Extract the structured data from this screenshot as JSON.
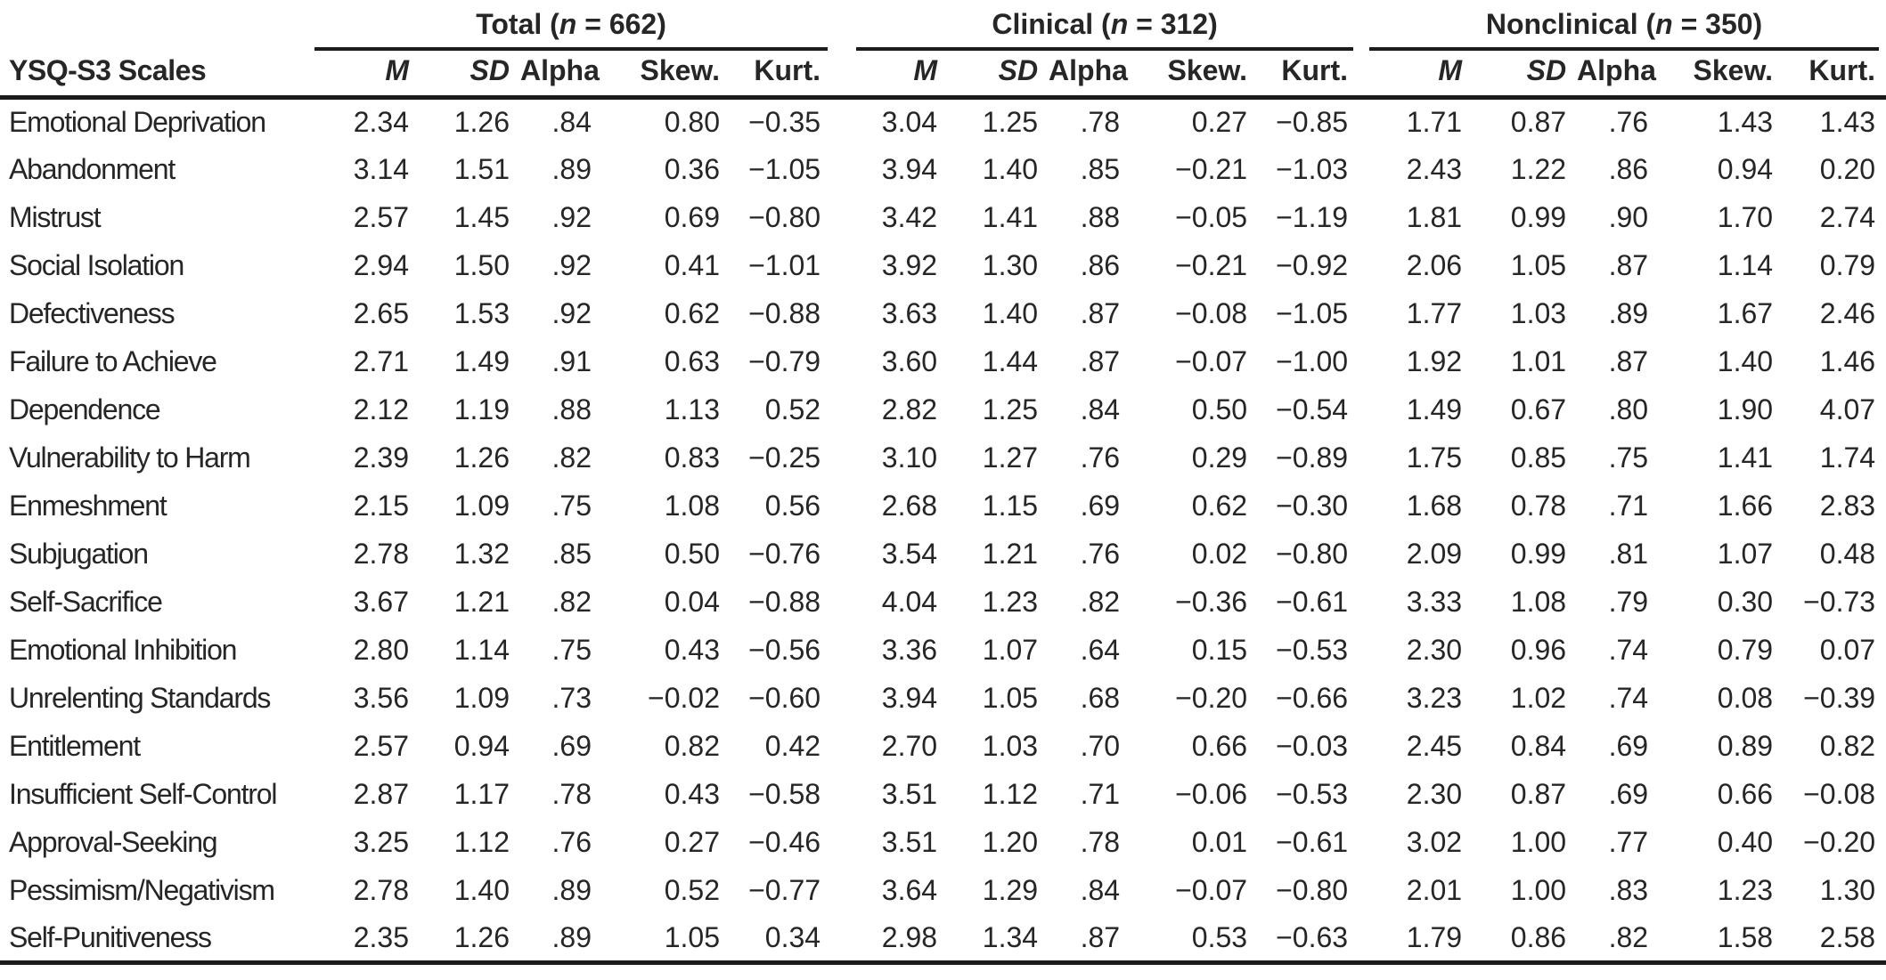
{
  "table": {
    "corner_header": "YSQ-S3 Scales",
    "groups": [
      {
        "key": "total",
        "label_pre": "Total (",
        "n_symbol": "n",
        "label_post": " = 662)"
      },
      {
        "key": "clinical",
        "label_pre": "Clinical (",
        "n_symbol": "n",
        "label_post": " = 312)"
      },
      {
        "key": "nonclinical",
        "label_pre": "Nonclinical (",
        "n_symbol": "n",
        "label_post": " = 350)"
      }
    ],
    "subheaders": [
      "M",
      "SD",
      "Alpha",
      "Skew.",
      "Kurt."
    ],
    "rows": [
      {
        "scale": "Emotional Deprivation",
        "total": [
          "2.34",
          "1.26",
          ".84",
          "0.80",
          "−0.35"
        ],
        "clinical": [
          "3.04",
          "1.25",
          ".78",
          "0.27",
          "−0.85"
        ],
        "nonclinical": [
          "1.71",
          "0.87",
          ".76",
          "1.43",
          "1.43"
        ]
      },
      {
        "scale": "Abandonment",
        "total": [
          "3.14",
          "1.51",
          ".89",
          "0.36",
          "−1.05"
        ],
        "clinical": [
          "3.94",
          "1.40",
          ".85",
          "−0.21",
          "−1.03"
        ],
        "nonclinical": [
          "2.43",
          "1.22",
          ".86",
          "0.94",
          "0.20"
        ]
      },
      {
        "scale": "Mistrust",
        "total": [
          "2.57",
          "1.45",
          ".92",
          "0.69",
          "−0.80"
        ],
        "clinical": [
          "3.42",
          "1.41",
          ".88",
          "−0.05",
          "−1.19"
        ],
        "nonclinical": [
          "1.81",
          "0.99",
          ".90",
          "1.70",
          "2.74"
        ]
      },
      {
        "scale": "Social Isolation",
        "total": [
          "2.94",
          "1.50",
          ".92",
          "0.41",
          "−1.01"
        ],
        "clinical": [
          "3.92",
          "1.30",
          ".86",
          "−0.21",
          "−0.92"
        ],
        "nonclinical": [
          "2.06",
          "1.05",
          ".87",
          "1.14",
          "0.79"
        ]
      },
      {
        "scale": "Defectiveness",
        "total": [
          "2.65",
          "1.53",
          ".92",
          "0.62",
          "−0.88"
        ],
        "clinical": [
          "3.63",
          "1.40",
          ".87",
          "−0.08",
          "−1.05"
        ],
        "nonclinical": [
          "1.77",
          "1.03",
          ".89",
          "1.67",
          "2.46"
        ]
      },
      {
        "scale": "Failure to Achieve",
        "total": [
          "2.71",
          "1.49",
          ".91",
          "0.63",
          "−0.79"
        ],
        "clinical": [
          "3.60",
          "1.44",
          ".87",
          "−0.07",
          "−1.00"
        ],
        "nonclinical": [
          "1.92",
          "1.01",
          ".87",
          "1.40",
          "1.46"
        ]
      },
      {
        "scale": "Dependence",
        "total": [
          "2.12",
          "1.19",
          ".88",
          "1.13",
          "0.52"
        ],
        "clinical": [
          "2.82",
          "1.25",
          ".84",
          "0.50",
          "−0.54"
        ],
        "nonclinical": [
          "1.49",
          "0.67",
          ".80",
          "1.90",
          "4.07"
        ]
      },
      {
        "scale": "Vulnerability to Harm",
        "total": [
          "2.39",
          "1.26",
          ".82",
          "0.83",
          "−0.25"
        ],
        "clinical": [
          "3.10",
          "1.27",
          ".76",
          "0.29",
          "−0.89"
        ],
        "nonclinical": [
          "1.75",
          "0.85",
          ".75",
          "1.41",
          "1.74"
        ]
      },
      {
        "scale": "Enmeshment",
        "total": [
          "2.15",
          "1.09",
          ".75",
          "1.08",
          "0.56"
        ],
        "clinical": [
          "2.68",
          "1.15",
          ".69",
          "0.62",
          "−0.30"
        ],
        "nonclinical": [
          "1.68",
          "0.78",
          ".71",
          "1.66",
          "2.83"
        ]
      },
      {
        "scale": "Subjugation",
        "total": [
          "2.78",
          "1.32",
          ".85",
          "0.50",
          "−0.76"
        ],
        "clinical": [
          "3.54",
          "1.21",
          ".76",
          "0.02",
          "−0.80"
        ],
        "nonclinical": [
          "2.09",
          "0.99",
          ".81",
          "1.07",
          "0.48"
        ]
      },
      {
        "scale": "Self-Sacrifice",
        "total": [
          "3.67",
          "1.21",
          ".82",
          "0.04",
          "−0.88"
        ],
        "clinical": [
          "4.04",
          "1.23",
          ".82",
          "−0.36",
          "−0.61"
        ],
        "nonclinical": [
          "3.33",
          "1.08",
          ".79",
          "0.30",
          "−0.73"
        ]
      },
      {
        "scale": "Emotional Inhibition",
        "total": [
          "2.80",
          "1.14",
          ".75",
          "0.43",
          "−0.56"
        ],
        "clinical": [
          "3.36",
          "1.07",
          ".64",
          "0.15",
          "−0.53"
        ],
        "nonclinical": [
          "2.30",
          "0.96",
          ".74",
          "0.79",
          "0.07"
        ]
      },
      {
        "scale": "Unrelenting Standards",
        "total": [
          "3.56",
          "1.09",
          ".73",
          "−0.02",
          "−0.60"
        ],
        "clinical": [
          "3.94",
          "1.05",
          ".68",
          "−0.20",
          "−0.66"
        ],
        "nonclinical": [
          "3.23",
          "1.02",
          ".74",
          "0.08",
          "−0.39"
        ]
      },
      {
        "scale": "Entitlement",
        "total": [
          "2.57",
          "0.94",
          ".69",
          "0.82",
          "0.42"
        ],
        "clinical": [
          "2.70",
          "1.03",
          ".70",
          "0.66",
          "−0.03"
        ],
        "nonclinical": [
          "2.45",
          "0.84",
          ".69",
          "0.89",
          "0.82"
        ]
      },
      {
        "scale": "Insufficient Self-Control",
        "total": [
          "2.87",
          "1.17",
          ".78",
          "0.43",
          "−0.58"
        ],
        "clinical": [
          "3.51",
          "1.12",
          ".71",
          "−0.06",
          "−0.53"
        ],
        "nonclinical": [
          "2.30",
          "0.87",
          ".69",
          "0.66",
          "−0.08"
        ]
      },
      {
        "scale": "Approval-Seeking",
        "total": [
          "3.25",
          "1.12",
          ".76",
          "0.27",
          "−0.46"
        ],
        "clinical": [
          "3.51",
          "1.20",
          ".78",
          "0.01",
          "−0.61"
        ],
        "nonclinical": [
          "3.02",
          "1.00",
          ".77",
          "0.40",
          "−0.20"
        ]
      },
      {
        "scale": "Pessimism/Negativism",
        "total": [
          "2.78",
          "1.40",
          ".89",
          "0.52",
          "−0.77"
        ],
        "clinical": [
          "3.64",
          "1.29",
          ".84",
          "−0.07",
          "−0.80"
        ],
        "nonclinical": [
          "2.01",
          "1.00",
          ".83",
          "1.23",
          "1.30"
        ]
      },
      {
        "scale": "Self-Punitiveness",
        "total": [
          "2.35",
          "1.26",
          ".89",
          "1.05",
          "0.34"
        ],
        "clinical": [
          "2.98",
          "1.34",
          ".87",
          "0.53",
          "−0.63"
        ],
        "nonclinical": [
          "1.79",
          "0.86",
          ".82",
          "1.58",
          "2.58"
        ]
      }
    ]
  }
}
